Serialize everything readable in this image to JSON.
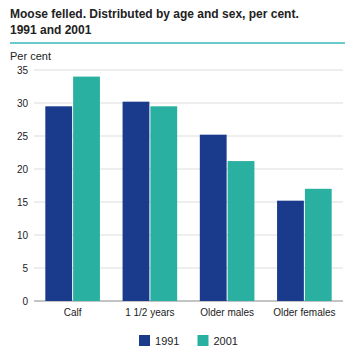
{
  "chart_data": {
    "type": "bar",
    "title": "Moose felled. Distributed by age and sex, per cent.",
    "subtitle": "1991 and 2001",
    "ylabel": "Per cent",
    "categories": [
      "Calf",
      "1 1/2 years",
      "Older males",
      "Older females"
    ],
    "series": [
      {
        "name": "1991",
        "color": "#1a3a8c",
        "values": [
          29.5,
          30.2,
          25.2,
          15.2
        ]
      },
      {
        "name": "2001",
        "color": "#2ab0a0",
        "values": [
          34.0,
          29.5,
          21.2,
          17.0
        ]
      }
    ],
    "ylim": [
      0,
      35
    ],
    "yticks": [
      0,
      5,
      10,
      15,
      20,
      25,
      30,
      35
    ],
    "grid": true,
    "legend": "bottom"
  }
}
